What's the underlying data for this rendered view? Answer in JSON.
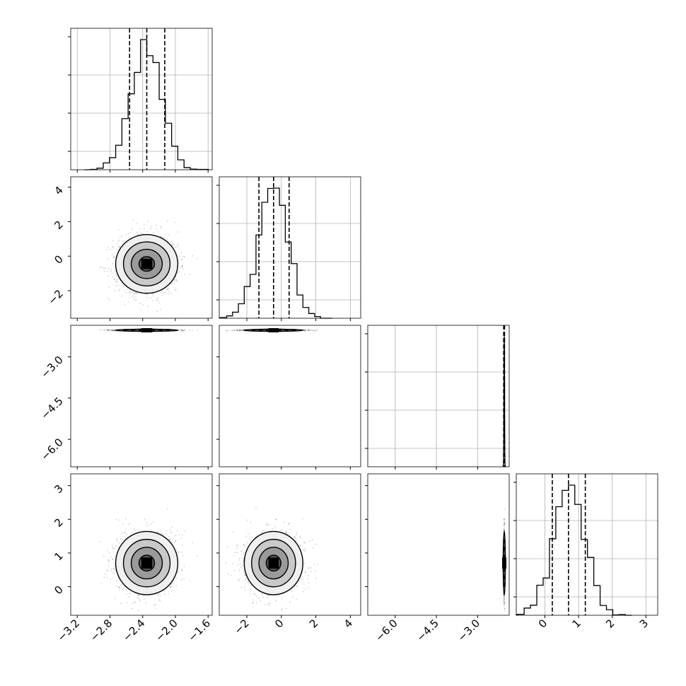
{
  "chart_data": {
    "type": "corner",
    "variables": [
      {
        "ticks": [
          "−3.2",
          "−2.8",
          "−2.4",
          "−2.0",
          "−1.6"
        ],
        "range": [
          -3.28,
          -1.55
        ],
        "tick_values": [
          -3.2,
          -2.8,
          -2.4,
          -2.0,
          -1.6
        ]
      },
      {
        "ticks": [
          "−2",
          "0",
          "2",
          "4"
        ],
        "range": [
          -3.6,
          4.6
        ],
        "tick_values": [
          -2,
          0,
          2,
          4
        ]
      },
      {
        "ticks": [
          "−6.0",
          "−4.5",
          "−3.0"
        ],
        "range": [
          -7.0,
          -1.85
        ],
        "tick_values": [
          -6.0,
          -4.5,
          -3.0
        ]
      },
      {
        "ticks": [
          "0",
          "1",
          "2",
          "3"
        ],
        "range": [
          -0.85,
          3.35
        ],
        "tick_values": [
          0,
          1,
          2,
          3
        ]
      }
    ],
    "row_ticks": [
      null,
      {
        "ticks": [
          "−2",
          "0",
          "2",
          "4"
        ],
        "tick_values": [
          -2,
          0,
          2,
          4
        ]
      },
      {
        "ticks": [
          "−3.0",
          "−4.5",
          "−6.0"
        ],
        "tick_values": [
          -3.0,
          -4.5,
          -6.0
        ]
      },
      {
        "ticks": [
          "0",
          "1",
          "2",
          "3"
        ],
        "tick_values": [
          0,
          1,
          2,
          3
        ]
      }
    ],
    "quantiles": [
      [
        -2.56,
        -2.35,
        -2.13
      ],
      [
        -1.3,
        -0.45,
        0.45
      ],
      [
        -2.05,
        -2.03,
        -2.02
      ],
      [
        0.22,
        0.7,
        1.2
      ]
    ],
    "means": [
      -2.35,
      -0.45,
      -2.03,
      0.7
    ],
    "sds": [
      0.19,
      0.85,
      0.01,
      0.47
    ],
    "hist_bins": 20,
    "grid": true
  }
}
